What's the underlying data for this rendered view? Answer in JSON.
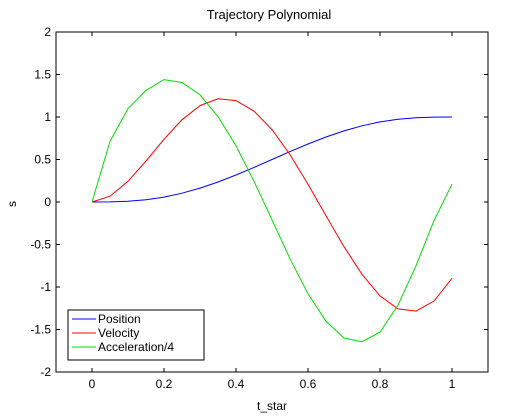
{
  "chart_data": {
    "type": "line",
    "title": "Trajectory Polynomial",
    "xlabel": "t_star",
    "ylabel": "s",
    "xlim": [
      -0.1,
      1.1
    ],
    "ylim": [
      -2,
      2
    ],
    "x_ticks": [
      0,
      0.2,
      0.4,
      0.6,
      0.8,
      1
    ],
    "x_tick_labels": [
      "0",
      "0.2",
      "0.4",
      "0.6",
      "0.8",
      "1"
    ],
    "y_ticks": [
      -2,
      -1.5,
      -1,
      -0.5,
      0,
      0.5,
      1,
      1.5,
      2
    ],
    "y_tick_labels": [
      "-2",
      "-1.5",
      "-1",
      "-0.5",
      "0",
      "0.5",
      "1",
      "1.5",
      "2"
    ],
    "grid": false,
    "legend_position": "bottom-left",
    "x": [
      0,
      0.05,
      0.1,
      0.15,
      0.2,
      0.25,
      0.3,
      0.35,
      0.4,
      0.45,
      0.5,
      0.55,
      0.6,
      0.65,
      0.7,
      0.75,
      0.8,
      0.85,
      0.9,
      0.95,
      1.0
    ],
    "series": [
      {
        "name": "Position",
        "color": "#0000ff",
        "values": [
          0,
          0.0012,
          0.0086,
          0.0266,
          0.0579,
          0.1035,
          0.1631,
          0.2352,
          0.3174,
          0.4069,
          0.5,
          0.5931,
          0.6826,
          0.7648,
          0.8369,
          0.8965,
          0.9421,
          0.9734,
          0.9914,
          0.9988,
          1.0
        ]
      },
      {
        "name": "Velocity",
        "color": "#ff0000",
        "values": [
          0,
          0.0677,
          0.243,
          0.4819,
          0.7373,
          0.9668,
          1.1342,
          1.2143,
          1.1932,
          1.0686,
          0.8514,
          0.5571,
          0.2091,
          -0.1629,
          -0.5263,
          -0.8508,
          -1.1047,
          -1.2576,
          -1.2832,
          -1.1644,
          -0.8974
        ]
      },
      {
        "name": "Acceleration/4",
        "color": "#00dd00",
        "values": [
          0,
          0.7125,
          1.1,
          1.3125,
          1.44,
          1.40625,
          1.26,
          1.00625,
          0.66,
          0.24375,
          -0.21,
          -0.66875,
          -1.08,
          -1.40375,
          -1.6,
          -1.64375,
          -1.53,
          -1.2125,
          -0.75,
          -0.21875,
          0.21
        ]
      }
    ]
  }
}
